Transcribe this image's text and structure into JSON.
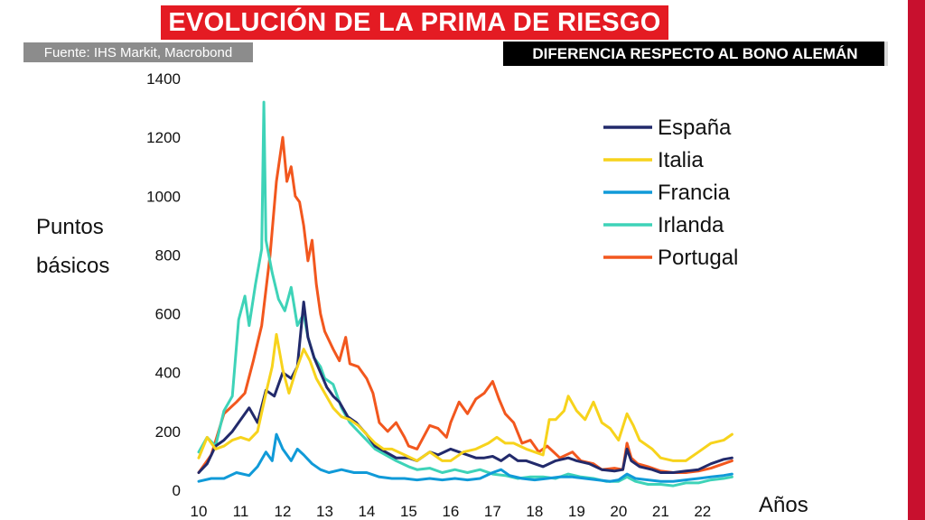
{
  "header": {
    "title": "EVOLUCIÓN DE LA PRIMA DE RIESGO",
    "source": "Fuente: IHS Markit, Macrobond",
    "subtitle": "DIFERENCIA RESPECTO AL BONO ALEMÁN"
  },
  "colors": {
    "title_bg": "#e41b23",
    "side_bar": "#c8102e",
    "source_bg": "#8c8c8c",
    "subtitle_bg": "#000000"
  },
  "chart_data": {
    "type": "line",
    "ylabel_lines": [
      "Puntos",
      "básicos"
    ],
    "xlabel": "Años",
    "xlim": [
      2010,
      2022.8
    ],
    "ylim": [
      0,
      1400
    ],
    "yticks": [
      0,
      200,
      400,
      600,
      800,
      1000,
      1200,
      1400
    ],
    "xticks": [
      2010,
      2011,
      2012,
      2013,
      2014,
      2015,
      2016,
      2017,
      2018,
      2019,
      2020,
      2021,
      2022
    ],
    "xtick_labels": [
      "10",
      "11",
      "12",
      "13",
      "14",
      "15",
      "16",
      "17",
      "18",
      "19",
      "20",
      "21",
      "22"
    ],
    "grid": false,
    "legend_position": "top-right",
    "series": [
      {
        "name": "Portugal",
        "color": "#f2571e",
        "points": [
          [
            2010.0,
            60
          ],
          [
            2010.3,
            120
          ],
          [
            2010.6,
            260
          ],
          [
            2010.9,
            300
          ],
          [
            2011.1,
            330
          ],
          [
            2011.3,
            440
          ],
          [
            2011.5,
            560
          ],
          [
            2011.7,
            800
          ],
          [
            2011.85,
            1050
          ],
          [
            2012.0,
            1200
          ],
          [
            2012.1,
            1050
          ],
          [
            2012.2,
            1100
          ],
          [
            2012.3,
            1000
          ],
          [
            2012.4,
            980
          ],
          [
            2012.5,
            900
          ],
          [
            2012.6,
            780
          ],
          [
            2012.7,
            850
          ],
          [
            2012.8,
            700
          ],
          [
            2012.9,
            600
          ],
          [
            2013.0,
            540
          ],
          [
            2013.2,
            480
          ],
          [
            2013.35,
            440
          ],
          [
            2013.5,
            520
          ],
          [
            2013.6,
            430
          ],
          [
            2013.8,
            420
          ],
          [
            2014.0,
            380
          ],
          [
            2014.15,
            330
          ],
          [
            2014.3,
            230
          ],
          [
            2014.5,
            200
          ],
          [
            2014.7,
            230
          ],
          [
            2014.9,
            180
          ],
          [
            2015.0,
            150
          ],
          [
            2015.2,
            140
          ],
          [
            2015.5,
            220
          ],
          [
            2015.7,
            210
          ],
          [
            2015.9,
            180
          ],
          [
            2016.0,
            230
          ],
          [
            2016.2,
            300
          ],
          [
            2016.4,
            260
          ],
          [
            2016.6,
            310
          ],
          [
            2016.8,
            330
          ],
          [
            2017.0,
            370
          ],
          [
            2017.15,
            310
          ],
          [
            2017.3,
            260
          ],
          [
            2017.5,
            230
          ],
          [
            2017.7,
            160
          ],
          [
            2017.9,
            170
          ],
          [
            2018.1,
            130
          ],
          [
            2018.3,
            150
          ],
          [
            2018.6,
            110
          ],
          [
            2018.9,
            130
          ],
          [
            2019.1,
            100
          ],
          [
            2019.4,
            90
          ],
          [
            2019.6,
            70
          ],
          [
            2019.9,
            75
          ],
          [
            2020.1,
            70
          ],
          [
            2020.2,
            160
          ],
          [
            2020.3,
            110
          ],
          [
            2020.45,
            90
          ],
          [
            2020.7,
            80
          ],
          [
            2021.0,
            65
          ],
          [
            2021.3,
            60
          ],
          [
            2021.6,
            60
          ],
          [
            2021.9,
            65
          ],
          [
            2022.2,
            75
          ],
          [
            2022.5,
            90
          ],
          [
            2022.7,
            100
          ]
        ]
      },
      {
        "name": "Irlanda",
        "color": "#3ed3b8",
        "points": [
          [
            2010.0,
            130
          ],
          [
            2010.2,
            180
          ],
          [
            2010.4,
            150
          ],
          [
            2010.6,
            270
          ],
          [
            2010.8,
            320
          ],
          [
            2010.95,
            580
          ],
          [
            2011.1,
            660
          ],
          [
            2011.2,
            560
          ],
          [
            2011.35,
            700
          ],
          [
            2011.5,
            820
          ],
          [
            2011.55,
            1320
          ],
          [
            2011.6,
            850
          ],
          [
            2011.75,
            740
          ],
          [
            2011.9,
            650
          ],
          [
            2012.05,
            610
          ],
          [
            2012.2,
            690
          ],
          [
            2012.35,
            560
          ],
          [
            2012.5,
            600
          ],
          [
            2012.6,
            520
          ],
          [
            2012.75,
            450
          ],
          [
            2012.9,
            420
          ],
          [
            2013.0,
            380
          ],
          [
            2013.2,
            360
          ],
          [
            2013.4,
            280
          ],
          [
            2013.6,
            230
          ],
          [
            2013.8,
            200
          ],
          [
            2014.0,
            170
          ],
          [
            2014.2,
            140
          ],
          [
            2014.45,
            120
          ],
          [
            2014.7,
            100
          ],
          [
            2015.0,
            80
          ],
          [
            2015.2,
            70
          ],
          [
            2015.5,
            75
          ],
          [
            2015.8,
            60
          ],
          [
            2016.1,
            70
          ],
          [
            2016.4,
            60
          ],
          [
            2016.7,
            70
          ],
          [
            2017.0,
            55
          ],
          [
            2017.3,
            50
          ],
          [
            2017.6,
            40
          ],
          [
            2017.9,
            45
          ],
          [
            2018.2,
            45
          ],
          [
            2018.5,
            40
          ],
          [
            2018.8,
            55
          ],
          [
            2019.1,
            45
          ],
          [
            2019.4,
            40
          ],
          [
            2019.7,
            30
          ],
          [
            2020.0,
            30
          ],
          [
            2020.2,
            45
          ],
          [
            2020.4,
            30
          ],
          [
            2020.7,
            20
          ],
          [
            2021.0,
            20
          ],
          [
            2021.3,
            15
          ],
          [
            2021.6,
            25
          ],
          [
            2021.9,
            25
          ],
          [
            2022.2,
            35
          ],
          [
            2022.5,
            40
          ],
          [
            2022.7,
            45
          ]
        ]
      },
      {
        "name": "España",
        "color": "#222a6b",
        "points": [
          [
            2010.0,
            60
          ],
          [
            2010.2,
            90
          ],
          [
            2010.4,
            150
          ],
          [
            2010.6,
            170
          ],
          [
            2010.8,
            200
          ],
          [
            2011.0,
            240
          ],
          [
            2011.2,
            280
          ],
          [
            2011.4,
            230
          ],
          [
            2011.6,
            340
          ],
          [
            2011.8,
            320
          ],
          [
            2012.0,
            400
          ],
          [
            2012.2,
            380
          ],
          [
            2012.35,
            420
          ],
          [
            2012.5,
            640
          ],
          [
            2012.6,
            520
          ],
          [
            2012.75,
            450
          ],
          [
            2012.9,
            400
          ],
          [
            2013.05,
            350
          ],
          [
            2013.2,
            320
          ],
          [
            2013.35,
            300
          ],
          [
            2013.55,
            250
          ],
          [
            2013.75,
            230
          ],
          [
            2014.0,
            190
          ],
          [
            2014.2,
            150
          ],
          [
            2014.45,
            130
          ],
          [
            2014.7,
            110
          ],
          [
            2015.0,
            110
          ],
          [
            2015.2,
            100
          ],
          [
            2015.5,
            130
          ],
          [
            2015.7,
            120
          ],
          [
            2016.0,
            140
          ],
          [
            2016.2,
            130
          ],
          [
            2016.4,
            120
          ],
          [
            2016.6,
            110
          ],
          [
            2016.8,
            110
          ],
          [
            2017.0,
            115
          ],
          [
            2017.2,
            100
          ],
          [
            2017.4,
            120
          ],
          [
            2017.6,
            100
          ],
          [
            2017.8,
            100
          ],
          [
            2018.0,
            90
          ],
          [
            2018.2,
            80
          ],
          [
            2018.5,
            100
          ],
          [
            2018.8,
            110
          ],
          [
            2019.0,
            100
          ],
          [
            2019.3,
            90
          ],
          [
            2019.6,
            70
          ],
          [
            2019.9,
            65
          ],
          [
            2020.1,
            70
          ],
          [
            2020.2,
            140
          ],
          [
            2020.3,
            100
          ],
          [
            2020.5,
            80
          ],
          [
            2020.8,
            70
          ],
          [
            2021.0,
            60
          ],
          [
            2021.3,
            60
          ],
          [
            2021.6,
            65
          ],
          [
            2021.9,
            70
          ],
          [
            2022.2,
            90
          ],
          [
            2022.5,
            105
          ],
          [
            2022.7,
            110
          ]
        ]
      },
      {
        "name": "Italia",
        "color": "#f7d31c",
        "points": [
          [
            2010.0,
            110
          ],
          [
            2010.2,
            180
          ],
          [
            2010.4,
            140
          ],
          [
            2010.6,
            150
          ],
          [
            2010.8,
            170
          ],
          [
            2011.0,
            180
          ],
          [
            2011.2,
            170
          ],
          [
            2011.4,
            200
          ],
          [
            2011.6,
            330
          ],
          [
            2011.75,
            420
          ],
          [
            2011.85,
            530
          ],
          [
            2012.0,
            410
          ],
          [
            2012.15,
            330
          ],
          [
            2012.3,
            400
          ],
          [
            2012.5,
            480
          ],
          [
            2012.65,
            440
          ],
          [
            2012.8,
            380
          ],
          [
            2013.0,
            330
          ],
          [
            2013.2,
            280
          ],
          [
            2013.4,
            250
          ],
          [
            2013.6,
            240
          ],
          [
            2013.8,
            220
          ],
          [
            2014.0,
            190
          ],
          [
            2014.2,
            160
          ],
          [
            2014.4,
            140
          ],
          [
            2014.6,
            140
          ],
          [
            2014.9,
            120
          ],
          [
            2015.2,
            100
          ],
          [
            2015.5,
            130
          ],
          [
            2015.8,
            100
          ],
          [
            2016.0,
            100
          ],
          [
            2016.3,
            130
          ],
          [
            2016.6,
            140
          ],
          [
            2016.9,
            160
          ],
          [
            2017.1,
            180
          ],
          [
            2017.3,
            160
          ],
          [
            2017.5,
            160
          ],
          [
            2017.8,
            140
          ],
          [
            2018.0,
            130
          ],
          [
            2018.2,
            120
          ],
          [
            2018.35,
            240
          ],
          [
            2018.5,
            240
          ],
          [
            2018.7,
            270
          ],
          [
            2018.8,
            320
          ],
          [
            2019.0,
            270
          ],
          [
            2019.2,
            240
          ],
          [
            2019.4,
            300
          ],
          [
            2019.6,
            230
          ],
          [
            2019.8,
            210
          ],
          [
            2020.0,
            170
          ],
          [
            2020.2,
            260
          ],
          [
            2020.35,
            220
          ],
          [
            2020.5,
            170
          ],
          [
            2020.8,
            140
          ],
          [
            2021.0,
            110
          ],
          [
            2021.3,
            100
          ],
          [
            2021.6,
            100
          ],
          [
            2021.9,
            130
          ],
          [
            2022.2,
            160
          ],
          [
            2022.5,
            170
          ],
          [
            2022.7,
            190
          ]
        ]
      },
      {
        "name": "Francia",
        "color": "#109ad8",
        "points": [
          [
            2010.0,
            30
          ],
          [
            2010.3,
            40
          ],
          [
            2010.6,
            40
          ],
          [
            2010.9,
            60
          ],
          [
            2011.2,
            50
          ],
          [
            2011.4,
            80
          ],
          [
            2011.6,
            130
          ],
          [
            2011.75,
            100
          ],
          [
            2011.85,
            190
          ],
          [
            2012.0,
            140
          ],
          [
            2012.2,
            100
          ],
          [
            2012.35,
            140
          ],
          [
            2012.5,
            120
          ],
          [
            2012.7,
            90
          ],
          [
            2012.9,
            70
          ],
          [
            2013.1,
            60
          ],
          [
            2013.4,
            70
          ],
          [
            2013.7,
            60
          ],
          [
            2014.0,
            60
          ],
          [
            2014.3,
            45
          ],
          [
            2014.6,
            40
          ],
          [
            2014.9,
            40
          ],
          [
            2015.2,
            35
          ],
          [
            2015.5,
            40
          ],
          [
            2015.8,
            35
          ],
          [
            2016.1,
            40
          ],
          [
            2016.4,
            35
          ],
          [
            2016.7,
            40
          ],
          [
            2017.0,
            60
          ],
          [
            2017.2,
            70
          ],
          [
            2017.4,
            50
          ],
          [
            2017.7,
            40
          ],
          [
            2018.0,
            35
          ],
          [
            2018.3,
            40
          ],
          [
            2018.6,
            45
          ],
          [
            2018.9,
            45
          ],
          [
            2019.2,
            40
          ],
          [
            2019.5,
            35
          ],
          [
            2019.8,
            30
          ],
          [
            2020.0,
            35
          ],
          [
            2020.2,
            55
          ],
          [
            2020.4,
            40
          ],
          [
            2020.7,
            35
          ],
          [
            2021.0,
            30
          ],
          [
            2021.3,
            30
          ],
          [
            2021.6,
            35
          ],
          [
            2021.9,
            40
          ],
          [
            2022.2,
            45
          ],
          [
            2022.5,
            50
          ],
          [
            2022.7,
            55
          ]
        ]
      }
    ],
    "legend": [
      "España",
      "Italia",
      "Francia",
      "Irlanda",
      "Portugal"
    ]
  }
}
